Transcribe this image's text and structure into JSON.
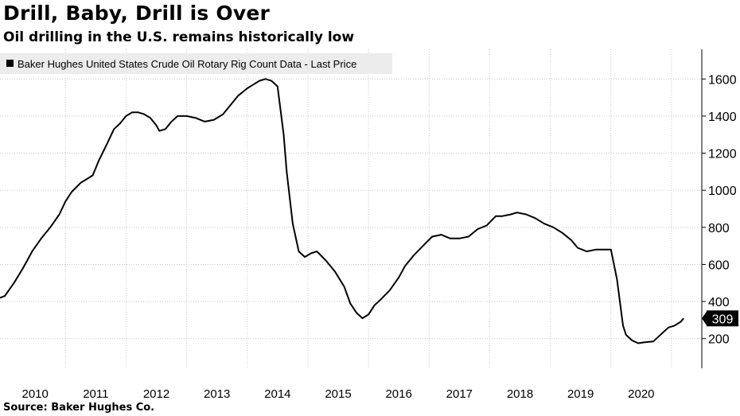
{
  "title": "Drill, Baby, Drill is Over",
  "subtitle": "Oil drilling in the U.S. remains historically low",
  "source": "Source: Baker Hughes Co.",
  "chart_data": {
    "type": "line",
    "series": [
      {
        "name": "Baker Hughes United States Crude Oil Rotary Rig Count Data - Last Price",
        "color": "#000000",
        "x": [
          2009.92,
          2010.0,
          2010.15,
          2010.3,
          2010.45,
          2010.6,
          2010.75,
          2010.9,
          2011.0,
          2011.1,
          2011.25,
          2011.4,
          2011.45,
          2011.55,
          2011.7,
          2011.8,
          2011.9,
          2012.0,
          2012.1,
          2012.2,
          2012.3,
          2012.4,
          2012.5,
          2012.55,
          2012.65,
          2012.75,
          2012.85,
          2013.0,
          2013.15,
          2013.3,
          2013.45,
          2013.6,
          2013.75,
          2013.85,
          2014.0,
          2014.1,
          2014.2,
          2014.3,
          2014.4,
          2014.5,
          2014.6,
          2014.65,
          2014.75,
          2014.85,
          2014.95,
          2015.05,
          2015.15,
          2015.3,
          2015.45,
          2015.6,
          2015.7,
          2015.8,
          2015.9,
          2016.0,
          2016.1,
          2016.2,
          2016.35,
          2016.5,
          2016.6,
          2016.75,
          2016.9,
          2017.05,
          2017.2,
          2017.35,
          2017.5,
          2017.65,
          2017.8,
          2017.95,
          2018.1,
          2018.2,
          2018.35,
          2018.45,
          2018.6,
          2018.75,
          2018.9,
          2019.05,
          2019.2,
          2019.35,
          2019.45,
          2019.6,
          2019.75,
          2019.9,
          2020.0,
          2020.1,
          2020.2,
          2020.25,
          2020.35,
          2020.45,
          2020.55,
          2020.7,
          2020.85,
          2020.95,
          2021.05,
          2021.15,
          2021.2
        ],
        "y": [
          420,
          430,
          500,
          580,
          670,
          740,
          800,
          870,
          940,
          990,
          1040,
          1070,
          1080,
          1160,
          1260,
          1330,
          1360,
          1400,
          1420,
          1420,
          1410,
          1390,
          1350,
          1320,
          1330,
          1370,
          1400,
          1400,
          1390,
          1370,
          1380,
          1410,
          1470,
          1510,
          1550,
          1570,
          1590,
          1600,
          1590,
          1560,
          1300,
          1100,
          820,
          670,
          640,
          660,
          670,
          620,
          560,
          480,
          390,
          340,
          310,
          330,
          380,
          410,
          460,
          530,
          590,
          650,
          700,
          750,
          760,
          740,
          740,
          750,
          790,
          810,
          860,
          860,
          870,
          880,
          870,
          850,
          820,
          800,
          770,
          730,
          690,
          670,
          680,
          680,
          680,
          520,
          270,
          220,
          190,
          175,
          180,
          185,
          230,
          260,
          270,
          290,
          309
        ]
      }
    ],
    "last_value_label": "309",
    "xticks": [
      "2010",
      "2011",
      "2012",
      "2013",
      "2014",
      "2015",
      "2016",
      "2017",
      "2018",
      "2019",
      "2020"
    ],
    "yticks": [
      200,
      400,
      600,
      800,
      1000,
      1200,
      1400,
      1600
    ],
    "xlim": [
      2009.92,
      2021.5
    ],
    "ylim": [
      40,
      1760
    ],
    "xlabel": "",
    "ylabel": "",
    "grid": "dotted",
    "legend_position": "top-left",
    "y_axis_position": "right"
  }
}
